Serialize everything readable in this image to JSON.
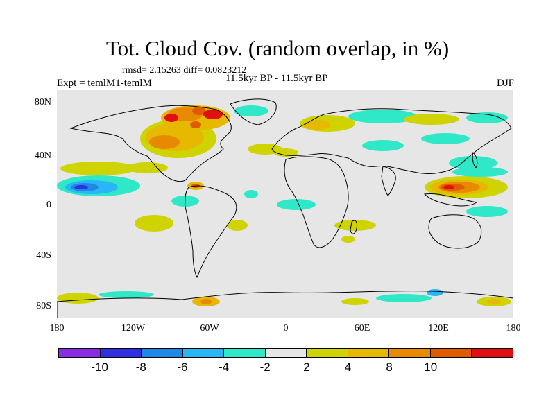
{
  "title": "Tot. Cloud Cov. (random overlap, in %)",
  "stats": "rmsd= 2.15263 diff= 0.0823212",
  "experiment": "Expt = temlM1-temlM",
  "period": "11.5kyr BP - 11.5kyr BP",
  "season": "DJF",
  "lat_labels": [
    "80N",
    "40N",
    "0",
    "40S",
    "80S"
  ],
  "lon_labels": [
    "180",
    "120W",
    "60W",
    "0",
    "60E",
    "120E",
    "180"
  ],
  "colorbar": {
    "labels": [
      "-10",
      "-8",
      "-6",
      "-4",
      "-2",
      "2",
      "4",
      "8",
      "10"
    ],
    "colors": [
      "#8b2be2",
      "#3030e0",
      "#1e88e5",
      "#29b6f6",
      "#2ee8c8",
      "#e6e6e6",
      "#cfd400",
      "#e6b800",
      "#e88a00",
      "#e05a00",
      "#e01010"
    ]
  },
  "map_colors": {
    "background": "#e6e6e6",
    "coastline": "#000000"
  }
}
